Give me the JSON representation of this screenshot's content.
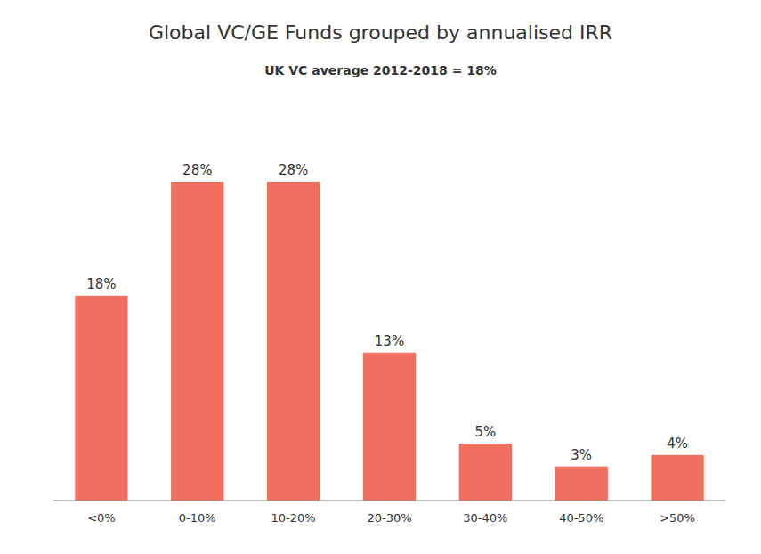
{
  "chart_data": {
    "type": "bar",
    "title": "Global VC/GE Funds grouped by annualised IRR",
    "subtitle": "UK VC average 2012-2018 = 18%",
    "categories": [
      "<0%",
      "0-10%",
      "10-20%",
      "20-30%",
      "30-40%",
      "40-50%",
      ">50%"
    ],
    "values": [
      18,
      28,
      28,
      13,
      5,
      3,
      4
    ],
    "value_labels": [
      "18%",
      "28%",
      "28%",
      "13%",
      "5%",
      "3%",
      "4%"
    ],
    "color": "#F07060",
    "ylim": [
      0,
      33
    ],
    "data_labels": true,
    "tick_labels": "x",
    "grid": false
  }
}
